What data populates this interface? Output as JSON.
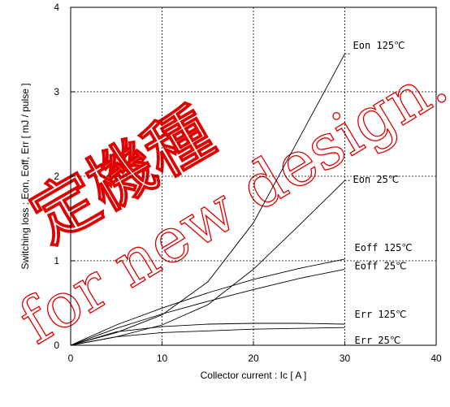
{
  "chart_data": {
    "type": "line",
    "xlabel": "Collector current : Ic [ A ]",
    "ylabel": "Switching loss : Eon, Eoff, Err [ mJ / pulse ]",
    "xlim": [
      0,
      40
    ],
    "ylim": [
      0,
      4
    ],
    "x_ticks": [
      "0",
      "10",
      "20",
      "30",
      "40"
    ],
    "y_ticks": [
      "0",
      "1",
      "2",
      "3",
      "4"
    ],
    "grid": true,
    "grid_style": "dotted",
    "series": [
      {
        "name": "Eon 125℃",
        "x": [
          0,
          5,
          10,
          15,
          20,
          25,
          30
        ],
        "y": [
          0,
          0.15,
          0.36,
          0.75,
          1.45,
          2.45,
          3.45
        ]
      },
      {
        "name": "Eon 25℃",
        "x": [
          0,
          5,
          10,
          15,
          20,
          25,
          30
        ],
        "y": [
          0,
          0.1,
          0.24,
          0.48,
          0.9,
          1.42,
          1.95
        ]
      },
      {
        "name": "Eoff 125℃",
        "x": [
          0,
          5,
          10,
          15,
          20,
          25,
          30
        ],
        "y": [
          0,
          0.24,
          0.44,
          0.62,
          0.78,
          0.91,
          1.02
        ]
      },
      {
        "name": "Eoff 25℃",
        "x": [
          0,
          5,
          10,
          15,
          20,
          25,
          30
        ],
        "y": [
          0,
          0.2,
          0.37,
          0.52,
          0.66,
          0.79,
          0.9
        ]
      },
      {
        "name": "Err 125℃",
        "x": [
          0,
          5,
          10,
          15,
          20,
          25,
          30
        ],
        "y": [
          0,
          0.16,
          0.22,
          0.25,
          0.26,
          0.26,
          0.25
        ]
      },
      {
        "name": "Err 25℃",
        "x": [
          0,
          5,
          10,
          15,
          20,
          25,
          30
        ],
        "y": [
          0,
          0.1,
          0.15,
          0.17,
          0.19,
          0.2,
          0.21
        ]
      }
    ]
  },
  "watermark": {
    "line1": "定機種",
    "line2": "for new design."
  }
}
